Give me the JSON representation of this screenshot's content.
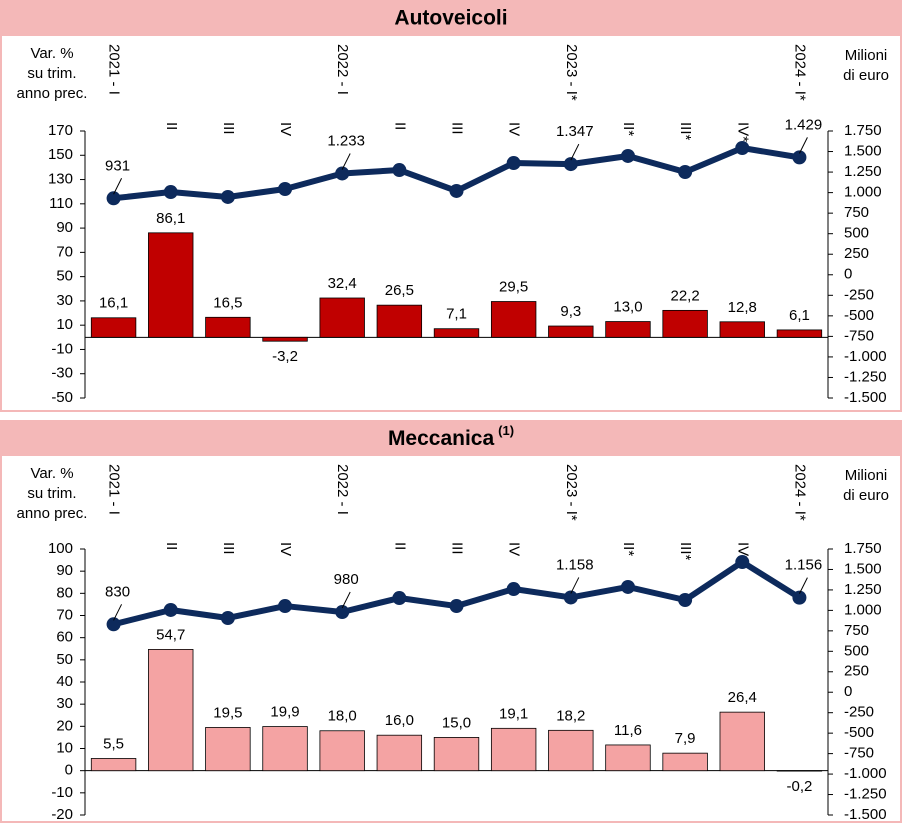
{
  "chart_data": [
    {
      "type": "combo",
      "title": "Autoveicoli",
      "categories": [
        "2021 - I",
        "II",
        "III",
        "IV",
        "2022 - I",
        "II",
        "III",
        "IV",
        "2023 - I*",
        "II*",
        "III*",
        "IV*",
        "2024 - I*"
      ],
      "y_label": [
        "Var. %",
        "su trim.",
        "anno prec."
      ],
      "y2_label": [
        "Milioni",
        "di euro"
      ],
      "bars": {
        "color": "#c00000",
        "values": [
          16.1,
          86.1,
          16.5,
          -3.2,
          32.4,
          26.5,
          7.1,
          29.5,
          9.3,
          13.0,
          22.2,
          12.8,
          6.1
        ],
        "value_labels": [
          "16,1",
          "86,1",
          "16,5",
          "-3,2",
          "32,4",
          "26,5",
          "7,1",
          "29,5",
          "9,3",
          "13,0",
          "22,2",
          "12,8",
          "6,1"
        ]
      },
      "line": {
        "color": "#0d2a5c",
        "axis": "y2",
        "values": [
          931,
          1007,
          947,
          1044,
          1233,
          1275,
          1020,
          1360,
          1347,
          1446,
          1251,
          1543,
          1429
        ],
        "value_labels": [
          "931",
          null,
          null,
          null,
          "1.233",
          null,
          null,
          null,
          "1.347",
          null,
          null,
          null,
          "1.429"
        ]
      },
      "ylim": [
        -50,
        170
      ],
      "yticks": [
        -50,
        -30,
        -10,
        10,
        30,
        50,
        70,
        90,
        110,
        130,
        150,
        170
      ],
      "y2lim": [
        -1500,
        1750
      ],
      "y2ticks": [
        {
          "value": -1500,
          "label": "-1.500"
        },
        {
          "value": -1250,
          "label": "-1.250"
        },
        {
          "value": -1000,
          "label": "-1.000"
        },
        -750,
        -500,
        -250,
        0,
        250,
        500,
        750,
        {
          "value": 1000,
          "label": "1.000"
        },
        {
          "value": 1250,
          "label": "1.250"
        },
        {
          "value": 1500,
          "label": "1.500"
        },
        {
          "value": 1750,
          "label": "1.750"
        }
      ]
    },
    {
      "type": "combo",
      "title": "Meccanica",
      "title_note": "(1)",
      "categories": [
        "2021 - I",
        "II",
        "III",
        "IV",
        "2022 - I",
        "II",
        "III",
        "IV",
        "2023 - I*",
        "II*",
        "III*",
        "IV*",
        "2024 - I*"
      ],
      "y_label": [
        "Var. %",
        "su trim.",
        "anno prec."
      ],
      "y2_label": [
        "Milioni",
        "di euro"
      ],
      "bars": {
        "color": "#f4a3a3",
        "values": [
          5.5,
          54.7,
          19.5,
          19.9,
          18.0,
          16.0,
          15.0,
          19.1,
          18.2,
          11.6,
          7.9,
          26.4,
          -0.2
        ],
        "value_labels": [
          "5,5",
          "54,7",
          "19,5",
          "19,9",
          "18,0",
          "16,0",
          "15,0",
          "19,1",
          "18,2",
          "11,6",
          "7,9",
          "26,4",
          "-0,2"
        ]
      },
      "line": {
        "color": "#0d2a5c",
        "axis": "y2",
        "values": [
          830,
          1005,
          907,
          1053,
          980,
          1151,
          1053,
          1261,
          1158,
          1286,
          1127,
          1591,
          1156
        ],
        "value_labels": [
          "830",
          null,
          null,
          null,
          "980",
          null,
          null,
          null,
          "1.158",
          null,
          null,
          null,
          "1.156"
        ]
      },
      "ylim": [
        -20,
        100
      ],
      "yticks": [
        -20,
        -10,
        0,
        10,
        20,
        30,
        40,
        50,
        60,
        70,
        80,
        90,
        100
      ],
      "y2lim": [
        -1500,
        1750
      ],
      "y2ticks": [
        {
          "value": -1500,
          "label": "-1.500"
        },
        {
          "value": -1250,
          "label": "-1.250"
        },
        {
          "value": -1000,
          "label": "-1.000"
        },
        -750,
        -500,
        -250,
        0,
        250,
        500,
        750,
        {
          "value": 1000,
          "label": "1.000"
        },
        {
          "value": 1250,
          "label": "1.250"
        },
        {
          "value": 1500,
          "label": "1.500"
        },
        {
          "value": 1750,
          "label": "1.750"
        }
      ]
    }
  ]
}
